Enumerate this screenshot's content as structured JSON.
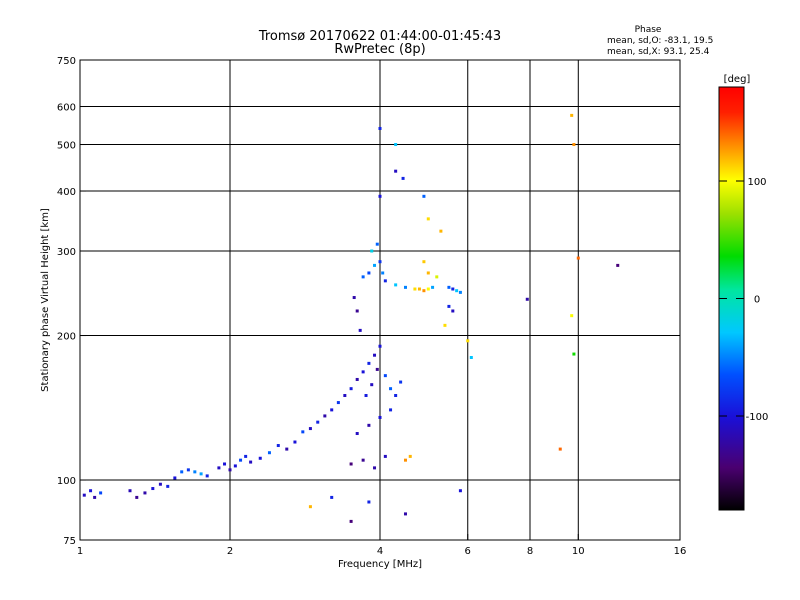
{
  "chart_data": {
    "type": "scatter",
    "title": "Tromsø 20170622 01:44:00-01:45:43",
    "subtitle": "RwPretec (8p)",
    "xlabel": "Frequency [MHz]",
    "ylabel": "Stationary phase Virtual Height [km]",
    "x_scale": "log",
    "y_scale": "log",
    "xlim": [
      1,
      16
    ],
    "ylim": [
      75,
      750
    ],
    "x_ticks": [
      1,
      2,
      4,
      6,
      8,
      10,
      16
    ],
    "x_tick_labels": [
      "1",
      "2",
      "4",
      "6",
      "8",
      "10",
      "16"
    ],
    "y_ticks": [
      75,
      100,
      200,
      300,
      400,
      500,
      600,
      750
    ],
    "y_tick_labels": [
      "75",
      "100",
      "200",
      "300",
      "400",
      "500",
      "600",
      "750"
    ],
    "grid": true,
    "grid_x": [
      2,
      4,
      6,
      8,
      10
    ],
    "grid_y": [
      100,
      200,
      300,
      400,
      500,
      600
    ],
    "phase_stats": {
      "title": "Phase",
      "line_o": "mean, sd,O: -83.1, 19.5",
      "line_x": "mean, sd,X:  93.1, 25.4"
    },
    "colorbar": {
      "label": "[deg]",
      "range": [
        -180,
        180
      ],
      "tick_values": [
        100,
        0,
        -100
      ],
      "tick_labels": [
        "100",
        "0",
        "-100"
      ]
    },
    "series": [
      {
        "name": "phase echoes",
        "note": "points are [frequency MHz, virtual height km, phase deg]",
        "points": [
          [
            1.02,
            93,
            -110
          ],
          [
            1.05,
            95,
            -100
          ],
          [
            1.07,
            92,
            -120
          ],
          [
            1.1,
            94,
            -70
          ],
          [
            1.26,
            95,
            -115
          ],
          [
            1.3,
            92,
            -130
          ],
          [
            1.35,
            94,
            -120
          ],
          [
            1.4,
            96,
            -100
          ],
          [
            1.45,
            98,
            -110
          ],
          [
            1.5,
            97,
            -90
          ],
          [
            1.55,
            101,
            -100
          ],
          [
            1.6,
            104,
            -60
          ],
          [
            1.65,
            105,
            -80
          ],
          [
            1.7,
            104,
            -50
          ],
          [
            1.75,
            103,
            -40
          ],
          [
            1.8,
            102,
            -90
          ],
          [
            1.9,
            106,
            -110
          ],
          [
            1.95,
            108,
            -100
          ],
          [
            2.0,
            105,
            -120
          ],
          [
            2.05,
            107,
            -100
          ],
          [
            2.1,
            110,
            -70
          ],
          [
            2.15,
            112,
            -90
          ],
          [
            2.2,
            109,
            -110
          ],
          [
            2.3,
            111,
            -100
          ],
          [
            2.4,
            114,
            -60
          ],
          [
            2.5,
            118,
            -90
          ],
          [
            2.6,
            116,
            -120
          ],
          [
            2.7,
            120,
            -100
          ],
          [
            2.8,
            126,
            -70
          ],
          [
            2.9,
            128,
            -110
          ],
          [
            3.0,
            132,
            -90
          ],
          [
            3.1,
            136,
            -120
          ],
          [
            3.2,
            140,
            -100
          ],
          [
            3.3,
            145,
            -80
          ],
          [
            3.4,
            150,
            -110
          ],
          [
            3.5,
            155,
            -95
          ],
          [
            3.6,
            162,
            -120
          ],
          [
            3.7,
            168,
            -100
          ],
          [
            3.8,
            175,
            -90
          ],
          [
            3.9,
            182,
            -110
          ],
          [
            4.0,
            190,
            -100
          ],
          [
            3.95,
            170,
            -130
          ],
          [
            3.85,
            158,
            -110
          ],
          [
            3.75,
            150,
            -95
          ],
          [
            4.1,
            165,
            -70
          ],
          [
            4.2,
            155,
            -60
          ],
          [
            4.3,
            150,
            -90
          ],
          [
            4.4,
            160,
            -80
          ],
          [
            3.6,
            125,
            -110
          ],
          [
            3.8,
            130,
            -120
          ],
          [
            4.0,
            135,
            -100
          ],
          [
            4.2,
            140,
            -90
          ],
          [
            3.5,
            108,
            -140
          ],
          [
            3.7,
            110,
            -130
          ],
          [
            3.9,
            106,
            -120
          ],
          [
            4.1,
            112,
            -110
          ],
          [
            3.7,
            265,
            -60
          ],
          [
            3.8,
            270,
            -70
          ],
          [
            3.9,
            280,
            -40
          ],
          [
            4.0,
            285,
            -80
          ],
          [
            4.05,
            270,
            -50
          ],
          [
            3.85,
            300,
            -20
          ],
          [
            3.95,
            310,
            -60
          ],
          [
            4.1,
            260,
            -90
          ],
          [
            4.3,
            255,
            -30
          ],
          [
            4.5,
            252,
            -50
          ],
          [
            4.7,
            250,
            110
          ],
          [
            4.8,
            250,
            120
          ],
          [
            4.9,
            248,
            130
          ],
          [
            5.0,
            250,
            100
          ],
          [
            5.1,
            252,
            -40
          ],
          [
            5.5,
            252,
            -60
          ],
          [
            5.6,
            250,
            -90
          ],
          [
            5.7,
            248,
            -30
          ],
          [
            5.8,
            246,
            -50
          ],
          [
            5.5,
            230,
            -90
          ],
          [
            5.6,
            225,
            -110
          ],
          [
            5.4,
            210,
            110
          ],
          [
            5.0,
            270,
            120
          ],
          [
            4.9,
            285,
            115
          ],
          [
            5.2,
            265,
            90
          ],
          [
            3.55,
            240,
            -120
          ],
          [
            3.6,
            225,
            -130
          ],
          [
            3.65,
            205,
            -110
          ],
          [
            4.5,
            110,
            130
          ],
          [
            4.6,
            112,
            120
          ],
          [
            4.5,
            85,
            -120
          ],
          [
            3.8,
            90,
            -90
          ],
          [
            5.8,
            95,
            -100
          ],
          [
            2.9,
            88,
            120
          ],
          [
            3.5,
            82,
            -140
          ],
          [
            3.2,
            92,
            -90
          ],
          [
            4.0,
            540,
            -90
          ],
          [
            4.3,
            500,
            -30
          ],
          [
            4.3,
            440,
            -110
          ],
          [
            4.45,
            425,
            -90
          ],
          [
            4.0,
            390,
            -100
          ],
          [
            4.9,
            390,
            -60
          ],
          [
            5.0,
            350,
            110
          ],
          [
            5.3,
            330,
            120
          ],
          [
            6.0,
            195,
            110
          ],
          [
            6.1,
            180,
            -30
          ],
          [
            7.9,
            238,
            -120
          ],
          [
            9.7,
            575,
            120
          ],
          [
            9.8,
            500,
            130
          ],
          [
            9.7,
            220,
            100
          ],
          [
            9.8,
            183,
            40
          ],
          [
            9.2,
            116,
            140
          ],
          [
            10.0,
            290,
            140
          ],
          [
            12.0,
            280,
            -140
          ]
        ]
      }
    ]
  }
}
